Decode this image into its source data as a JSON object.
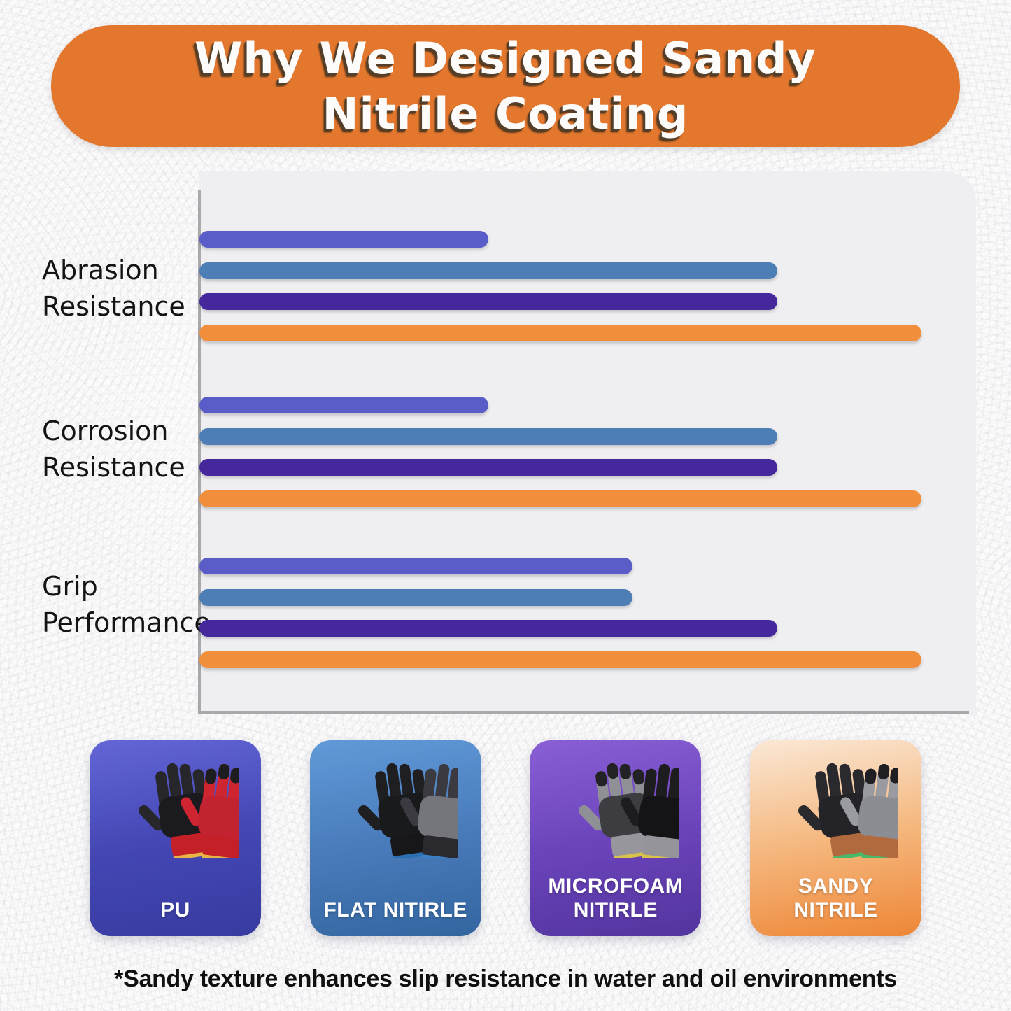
{
  "header": {
    "title_line1": "Why We Designed Sandy",
    "title_line2": "Nitrile Coating",
    "banner_color": "#e3772e"
  },
  "chart_data": {
    "type": "bar",
    "orientation": "horizontal",
    "title": "",
    "xlabel": "",
    "ylabel": "",
    "categories": [
      "Abrasion Resistance",
      "Corrosion Resistance",
      "Grip Performance"
    ],
    "category_lines": [
      [
        "Abrasion",
        "Resistance"
      ],
      [
        "Corrosion",
        "Resistance"
      ],
      [
        "Grip",
        "Performance"
      ]
    ],
    "series": [
      {
        "name": "PU",
        "color": "#5a5cc8",
        "values": [
          2,
          2,
          3
        ]
      },
      {
        "name": "FLAT NITIRLE",
        "color": "#4e7eb6",
        "values": [
          4,
          4,
          3
        ]
      },
      {
        "name": "MICROFOAM NITIRLE",
        "color": "#44289c",
        "values": [
          4,
          4,
          4
        ]
      },
      {
        "name": "SANDY NITRILE",
        "color": "#f28f3c",
        "values": [
          5,
          5,
          5
        ]
      }
    ],
    "value_range": [
      0,
      5
    ],
    "grid": false,
    "legend_position": "none",
    "axis_color": "#a9a9ab",
    "panel_color": "#efeff1"
  },
  "cards": [
    {
      "label_lines": [
        "PU"
      ],
      "gradient": [
        "#6466d8",
        "#4447b4",
        "#383ba0"
      ],
      "gloves": [
        {
          "body": "#26262b",
          "palm": "#1b1b1f",
          "cuff": "#c42028",
          "band": "#e8b445",
          "tips": ""
        },
        {
          "body": "#ce2531",
          "palm": "#c32330",
          "cuff": "#c42028",
          "band": "#e8b445",
          "tips": "#1d1d20"
        }
      ]
    },
    {
      "label_lines": [
        "FLAT NITIRLE"
      ],
      "gradient": [
        "#619ad8",
        "#4a7cbc",
        "#33659f"
      ],
      "gloves": [
        {
          "body": "#1f1f22",
          "palm": "#191a1c",
          "cuff": "#17171a",
          "band": "#2a6fb0",
          "tips": ""
        },
        {
          "body": "#3a3a40",
          "palm": "#75757c",
          "cuff": "#2a2a2e",
          "band": "#3b7fc4",
          "tips": ""
        }
      ]
    },
    {
      "label_lines": [
        "MICROFOAM",
        "NITIRLE"
      ],
      "gradient": [
        "#8a5fd6",
        "#6b44bb",
        "#53359e"
      ],
      "gloves": [
        {
          "body": "#8f8f96",
          "palm": "#3c3c41",
          "cuff": "#96969c",
          "band": "#d9c24a",
          "tips": "#222226"
        },
        {
          "body": "#1d1d20",
          "palm": "#141416",
          "cuff": "#94949a",
          "band": "#d9c24a",
          "tips": ""
        }
      ]
    },
    {
      "label_lines": [
        "SANDY",
        "NITRILE"
      ],
      "gradient": [
        "#fae8d6",
        "#f5b87f",
        "#ee8636"
      ],
      "gloves": [
        {
          "body": "#2a2a2e",
          "palm": "#242428",
          "cuff": "#b06a3e",
          "band": "#49b868",
          "tips": ""
        },
        {
          "body": "#9a9aa1",
          "palm": "#8c8c93",
          "cuff": "#b06a3e",
          "band": "#49b868",
          "tips": "#1f1f23"
        }
      ]
    }
  ],
  "footnote": "*Sandy texture enhances slip resistance in water and oil environments"
}
